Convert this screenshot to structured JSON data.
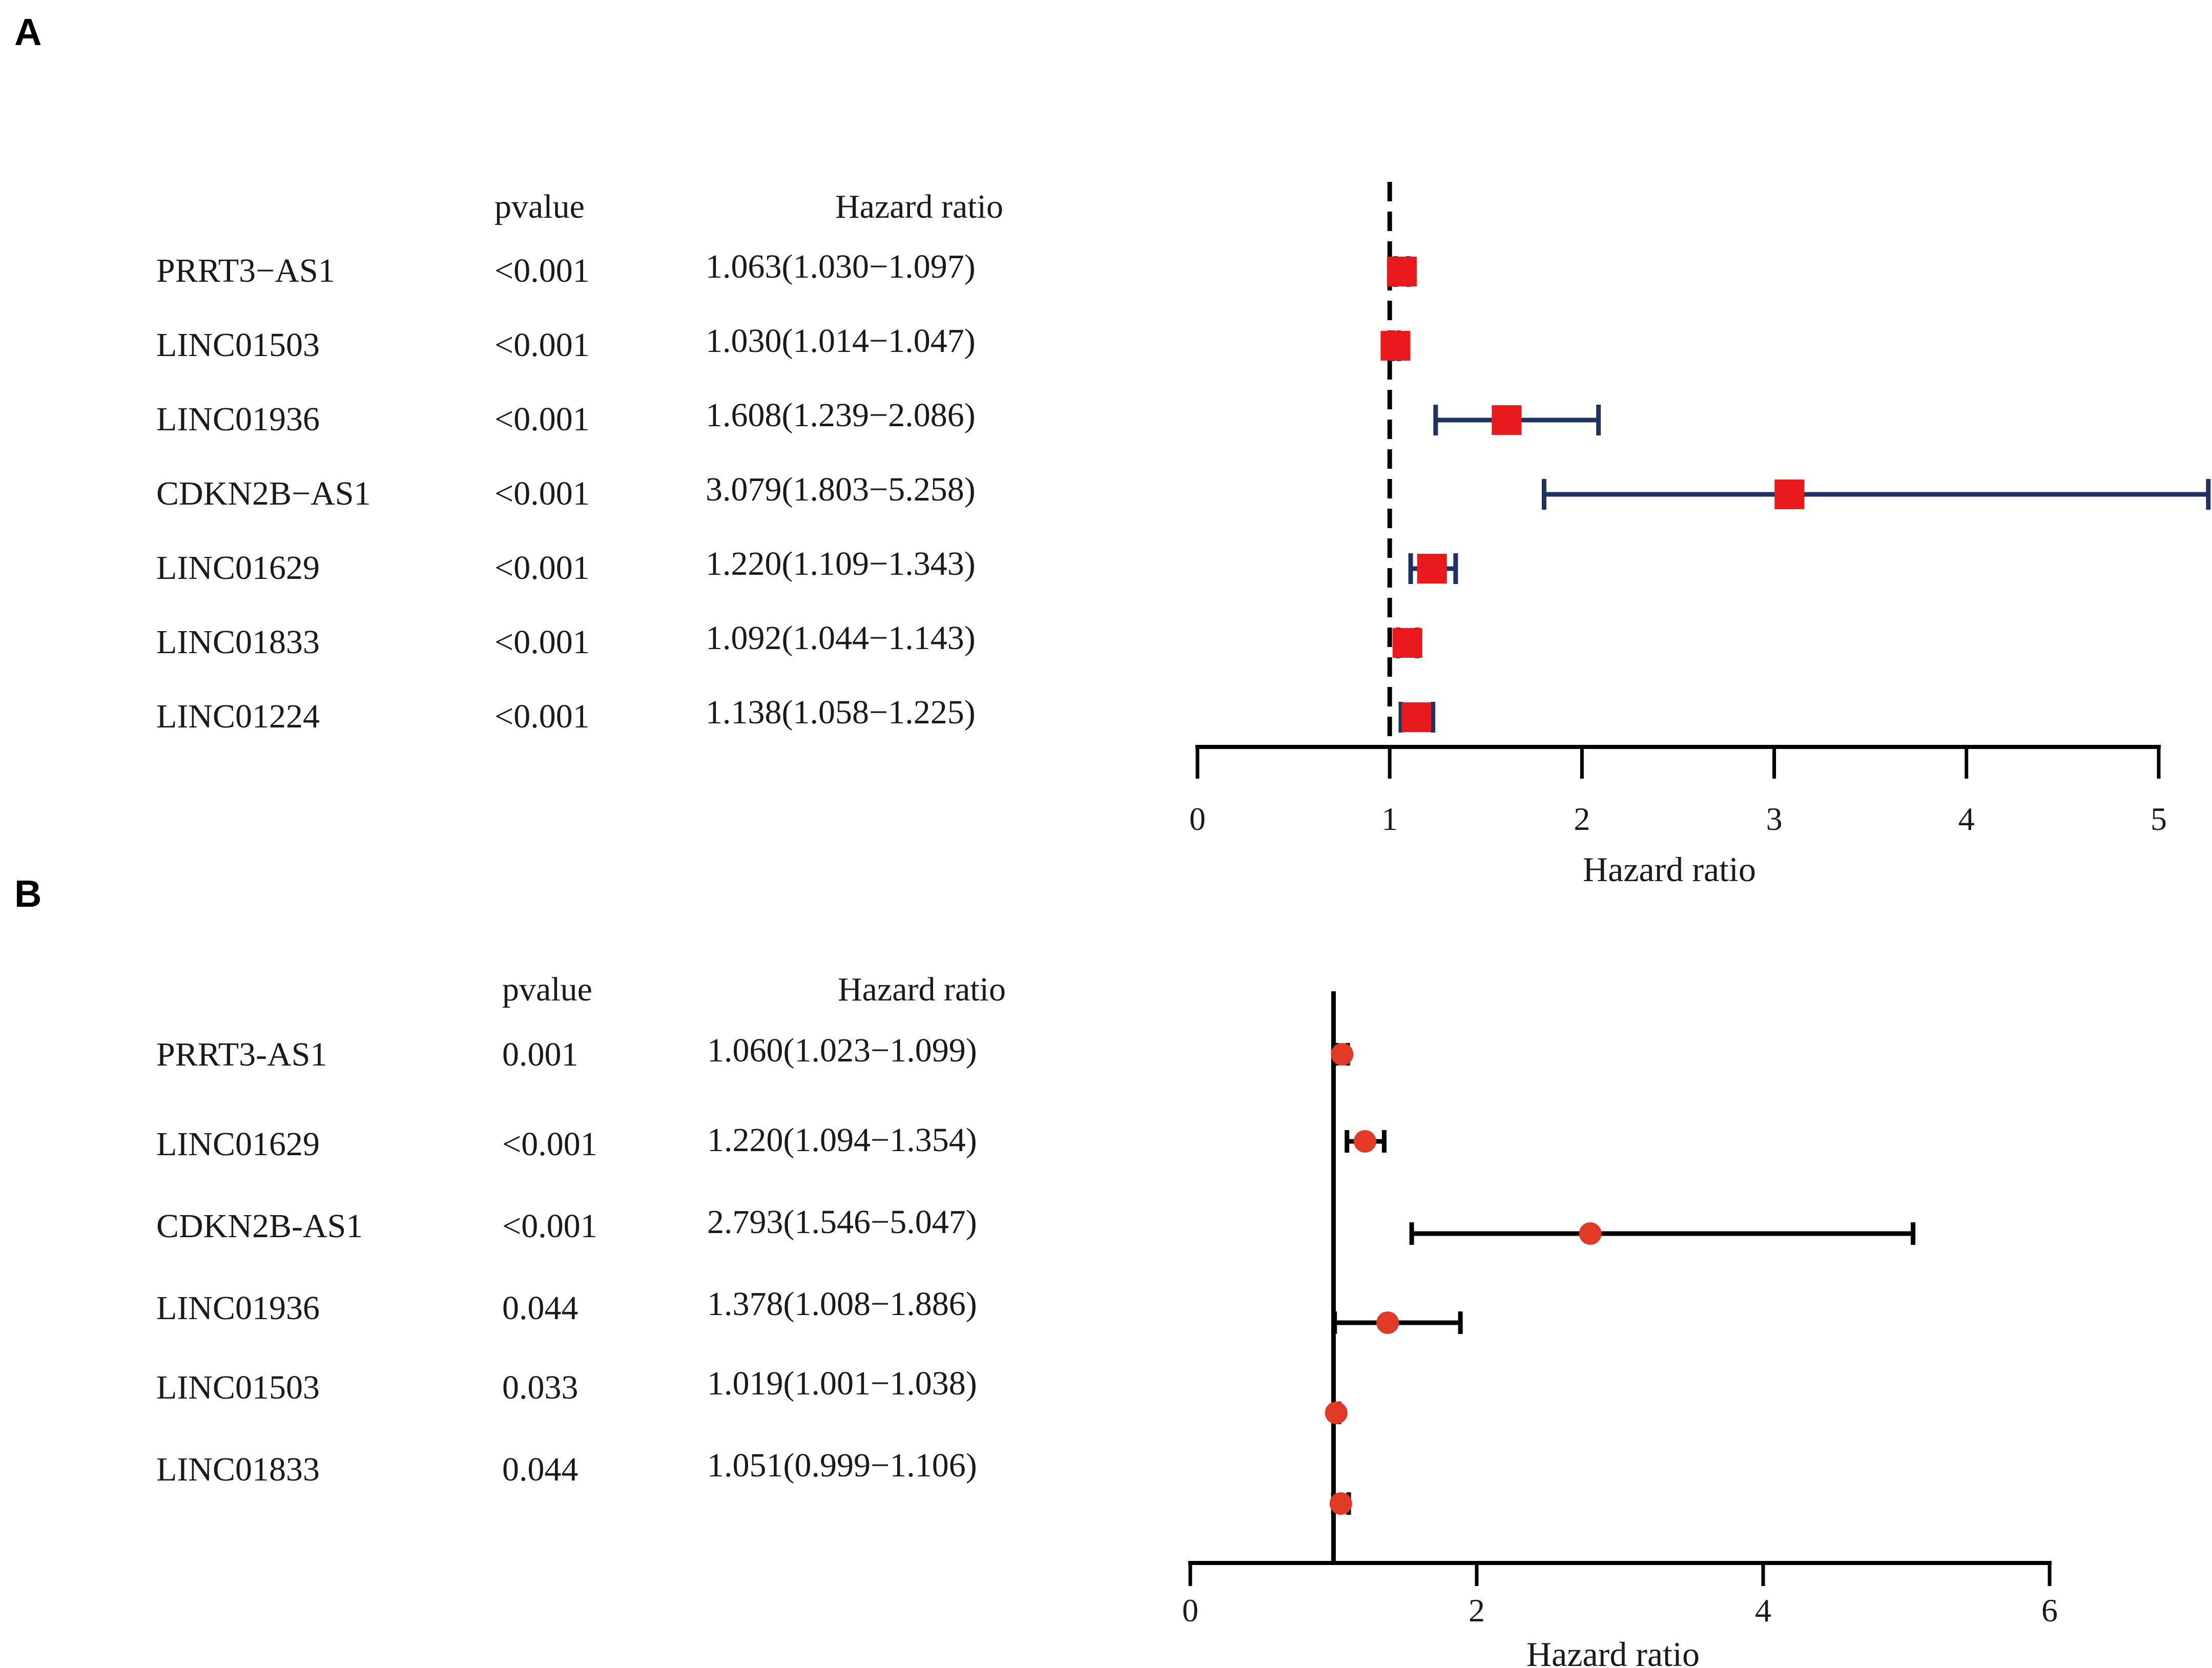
{
  "chart_data": [
    {
      "panel_label": "A",
      "type": "forest",
      "headers": {
        "pvalue": "pvalue",
        "hr": "Hazard ratio"
      },
      "xlabel": "Hazard ratio",
      "xlim": [
        0,
        5
      ],
      "ticks": [
        "0",
        "1",
        "2",
        "3",
        "4",
        "5"
      ],
      "reference_line": 1,
      "reference_style": "dashed",
      "marker": "square",
      "colors": {
        "marker": "#e8191c",
        "ci": "#1f3264",
        "ref": "#000000",
        "axis": "#000000"
      },
      "rows": [
        {
          "name": "PRRT3−AS1",
          "pvalue": "<0.001",
          "hr_text": "1.063(1.030−1.097)",
          "hr": 1.063,
          "lower": 1.03,
          "upper": 1.097
        },
        {
          "name": "LINC01503",
          "pvalue": "<0.001",
          "hr_text": "1.030(1.014−1.047)",
          "hr": 1.03,
          "lower": 1.014,
          "upper": 1.047
        },
        {
          "name": "LINC01936",
          "pvalue": "<0.001",
          "hr_text": "1.608(1.239−2.086)",
          "hr": 1.608,
          "lower": 1.239,
          "upper": 2.086
        },
        {
          "name": "CDKN2B−AS1",
          "pvalue": "<0.001",
          "hr_text": "3.079(1.803−5.258)",
          "hr": 3.079,
          "lower": 1.803,
          "upper": 5.258
        },
        {
          "name": "LINC01629",
          "pvalue": "<0.001",
          "hr_text": "1.220(1.109−1.343)",
          "hr": 1.22,
          "lower": 1.109,
          "upper": 1.343
        },
        {
          "name": "LINC01833",
          "pvalue": "<0.001",
          "hr_text": "1.092(1.044−1.143)",
          "hr": 1.092,
          "lower": 1.044,
          "upper": 1.143
        },
        {
          "name": "LINC01224",
          "pvalue": "<0.001",
          "hr_text": "1.138(1.058−1.225)",
          "hr": 1.138,
          "lower": 1.058,
          "upper": 1.225
        }
      ]
    },
    {
      "panel_label": "B",
      "type": "forest",
      "headers": {
        "pvalue": "pvalue",
        "hr": "Hazard ratio"
      },
      "xlabel": "Hazard ratio",
      "xlim": [
        0,
        6
      ],
      "ticks": [
        "0",
        "2",
        "4",
        "6"
      ],
      "reference_line": 1,
      "reference_style": "solid",
      "marker": "circle",
      "colors": {
        "marker": "#e03a26",
        "ci": "#000000",
        "ref": "#000000",
        "axis": "#000000"
      },
      "rows": [
        {
          "name": "PRRT3-AS1",
          "pvalue": "0.001",
          "hr_text": "1.060(1.023−1.099)",
          "hr": 1.06,
          "lower": 1.023,
          "upper": 1.099
        },
        {
          "name": "LINC01629",
          "pvalue": "<0.001",
          "hr_text": "1.220(1.094−1.354)",
          "hr": 1.22,
          "lower": 1.094,
          "upper": 1.354
        },
        {
          "name": "CDKN2B-AS1",
          "pvalue": "<0.001",
          "hr_text": "2.793(1.546−5.047)",
          "hr": 2.793,
          "lower": 1.546,
          "upper": 5.047
        },
        {
          "name": "LINC01936",
          "pvalue": "0.044",
          "hr_text": "1.378(1.008−1.886)",
          "hr": 1.378,
          "lower": 1.008,
          "upper": 1.886
        },
        {
          "name": "LINC01503",
          "pvalue": "0.033",
          "hr_text": "1.019(1.001−1.038)",
          "hr": 1.019,
          "lower": 1.001,
          "upper": 1.038
        },
        {
          "name": "LINC01833",
          "pvalue": "0.044",
          "hr_text": "1.051(0.999−1.106)",
          "hr": 1.051,
          "lower": 0.999,
          "upper": 1.106
        }
      ]
    }
  ]
}
